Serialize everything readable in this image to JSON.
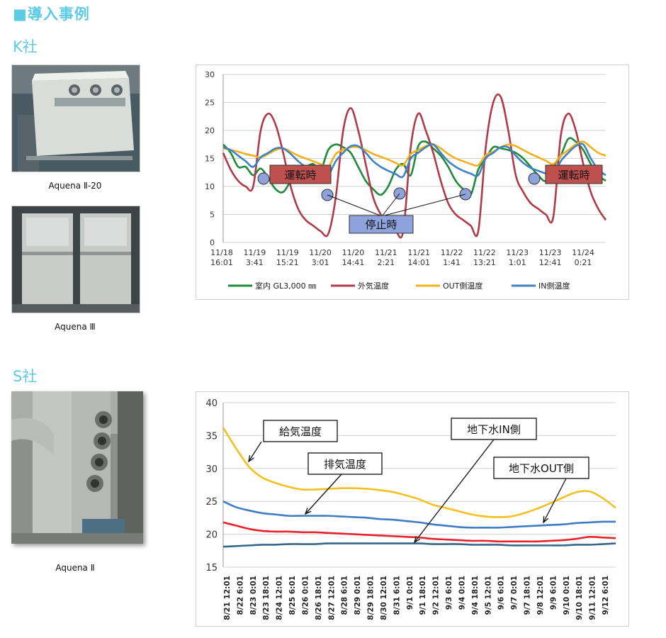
{
  "page": {
    "title": "■導入事例",
    "k": {
      "company": "K社",
      "caption1": "Aquena Ⅱ-20",
      "caption2": "Aquena Ⅲ"
    },
    "s": {
      "company": "S社",
      "caption": "Aquena Ⅱ"
    }
  },
  "chart_data": [
    {
      "type": "line",
      "title": "",
      "ylim": [
        0,
        30
      ],
      "yticks": [
        0,
        5,
        10,
        15,
        20,
        25,
        30
      ],
      "x_tick_labels": [
        [
          "11/18",
          "16:01"
        ],
        [
          "11/19",
          "3:41"
        ],
        [
          "11/19",
          "15:21"
        ],
        [
          "11/20",
          "3:01"
        ],
        [
          "11/20",
          "14:41"
        ],
        [
          "11/21",
          "2:21"
        ],
        [
          "11/21",
          "14:01"
        ],
        [
          "11/22",
          "1:41"
        ],
        [
          "11/22",
          "13:21"
        ],
        [
          "11/23",
          "1:01"
        ],
        [
          "11/23",
          "12:41"
        ],
        [
          "11/24",
          "0:21"
        ]
      ],
      "grid": true,
      "legend_position": "bottom",
      "series": [
        {
          "name": "室内 GL3,000 ㎜",
          "color": "#1f8a3a",
          "values": [
            17.5,
            16,
            13.5,
            13.5,
            12,
            13.2,
            11.5,
            9.5,
            9,
            11,
            13,
            13.5,
            14,
            13,
            16.5,
            17.5,
            17,
            16,
            13.5,
            11,
            9.5,
            8.5,
            10,
            13,
            14,
            12,
            17.2,
            18,
            16.8,
            15.5,
            13.5,
            11,
            9.5,
            8.5,
            13,
            15,
            17,
            16.8,
            16.5,
            16,
            15,
            13.5,
            12,
            11,
            13.5,
            15.5,
            18.5,
            18,
            16.5,
            14,
            12,
            11
          ]
        },
        {
          "name": "外気温度",
          "color": "#b03a48",
          "values": [
            16,
            13,
            11,
            10,
            10,
            20,
            23,
            21,
            16,
            10,
            6,
            4,
            3,
            2,
            1.5,
            8,
            20,
            24,
            20,
            14,
            8,
            5,
            3,
            2,
            2,
            17,
            23,
            20,
            16,
            11,
            7,
            5,
            4,
            3,
            2,
            17,
            25,
            26,
            20,
            12,
            9,
            7,
            6,
            5,
            4.5,
            19,
            23,
            20,
            14,
            9,
            6,
            4
          ]
        },
        {
          "name": "OUT側温度",
          "color": "#f0b11c",
          "values": [
            16.8,
            16.5,
            16.2,
            15.8,
            15.5,
            15.2,
            15.8,
            16.5,
            16.8,
            16.2,
            15.5,
            15,
            14.5,
            14,
            13.5,
            15.8,
            16.5,
            17,
            17,
            16.5,
            15.8,
            15.3,
            14.8,
            14.2,
            13.8,
            15.8,
            16.5,
            17.2,
            17.5,
            16.8,
            15.8,
            15,
            14.5,
            14,
            13.8,
            15.6,
            16.2,
            17,
            17.5,
            17.2,
            16.5,
            15.8,
            15.2,
            14.6,
            14,
            15.5,
            16.5,
            17.5,
            18,
            17,
            16,
            15.5
          ]
        },
        {
          "name": "IN側温度",
          "color": "#3f82c4",
          "values": [
            17,
            16.5,
            15.5,
            14.5,
            13.5,
            15.2,
            16,
            16.8,
            16.8,
            15.8,
            14.5,
            13.5,
            12.8,
            12.2,
            12,
            14.5,
            16,
            17.2,
            17.2,
            16,
            14.5,
            13.5,
            12.8,
            12.2,
            11.8,
            15,
            16,
            17,
            17.5,
            16,
            14.5,
            13.5,
            12.8,
            12.3,
            12,
            15,
            16,
            17,
            17,
            15.5,
            14.2,
            13.3,
            12.8,
            12.3,
            12,
            14.5,
            16,
            17.2,
            17.5,
            15,
            13,
            12
          ]
        }
      ],
      "annotations": {
        "running": "運転時",
        "stopped": "停止時"
      }
    },
    {
      "type": "line",
      "title": "",
      "ylim": [
        15,
        40
      ],
      "yticks": [
        15,
        20,
        25,
        30,
        35,
        40
      ],
      "x_tick_labels": [
        "8/21 12:01",
        "8/22 6:01",
        "8/23 0:01",
        "8/23 18:01",
        "8/24 12:01",
        "8/25 6:01",
        "8/26 0:01",
        "8/26 18:01",
        "8/27 12:01",
        "8/28 6:01",
        "8/29 0:01",
        "8/29 18:01",
        "8/30 12:01",
        "8/31 6:01",
        "9/1 0:01",
        "9/1 18:01",
        "9/2 12:01",
        "9/3 6:01",
        "9/4 0:01",
        "9/4 18:01",
        "9/5 12:01",
        "9/6 6:01",
        "9/7 0:01",
        "9/7 18:01",
        "9/8 12:01",
        "9/9 6:01",
        "9/10 0:01",
        "9/10 18:01",
        "9/11 12:01",
        "9/12 6:01"
      ],
      "grid": true,
      "series": [
        {
          "name": "給気温度",
          "color": "#f2c01f",
          "values": [
            36.2,
            33,
            30.2,
            28.6,
            27.8,
            27.2,
            26.8,
            26.8,
            26.9,
            27,
            27,
            26.9,
            26.7,
            26.4,
            25.9,
            25.3,
            24.5,
            24,
            23.5,
            23,
            22.7,
            22.6,
            22.7,
            23.2,
            23.9,
            24.7,
            25.6,
            26.4,
            26.5,
            25.5,
            24
          ]
        },
        {
          "name": "排気温度",
          "color": "#3f7cc4",
          "values": [
            25,
            24.1,
            23.6,
            23.2,
            23,
            22.8,
            22.8,
            22.8,
            22.8,
            22.7,
            22.6,
            22.5,
            22.3,
            22.2,
            22,
            21.8,
            21.5,
            21.3,
            21.1,
            21,
            21,
            21,
            21.1,
            21.2,
            21.3,
            21.4,
            21.5,
            21.7,
            21.8,
            21.9,
            21.9
          ]
        },
        {
          "name": "地下水IN側",
          "color": "#e8222c",
          "values": [
            21.8,
            21.3,
            20.8,
            20.5,
            20.4,
            20.4,
            20.3,
            20.3,
            20.2,
            20.1,
            20,
            19.9,
            19.8,
            19.7,
            19.6,
            19.5,
            19.3,
            19.2,
            19.1,
            19,
            19,
            18.9,
            18.9,
            18.9,
            18.9,
            19,
            19.1,
            19.3,
            19.6,
            19.5,
            19.4
          ]
        },
        {
          "name": "地下水OUT側",
          "color": "#36688c",
          "values": [
            18.1,
            18.2,
            18.3,
            18.4,
            18.4,
            18.5,
            18.5,
            18.5,
            18.6,
            18.6,
            18.6,
            18.6,
            18.6,
            18.6,
            18.6,
            18.6,
            18.5,
            18.5,
            18.5,
            18.4,
            18.4,
            18.4,
            18.3,
            18.3,
            18.3,
            18.3,
            18.3,
            18.4,
            18.4,
            18.5,
            18.6
          ]
        }
      ],
      "callouts": [
        "給気温度",
        "排気温度",
        "地下水IN側",
        "地下水OUT側"
      ]
    }
  ]
}
